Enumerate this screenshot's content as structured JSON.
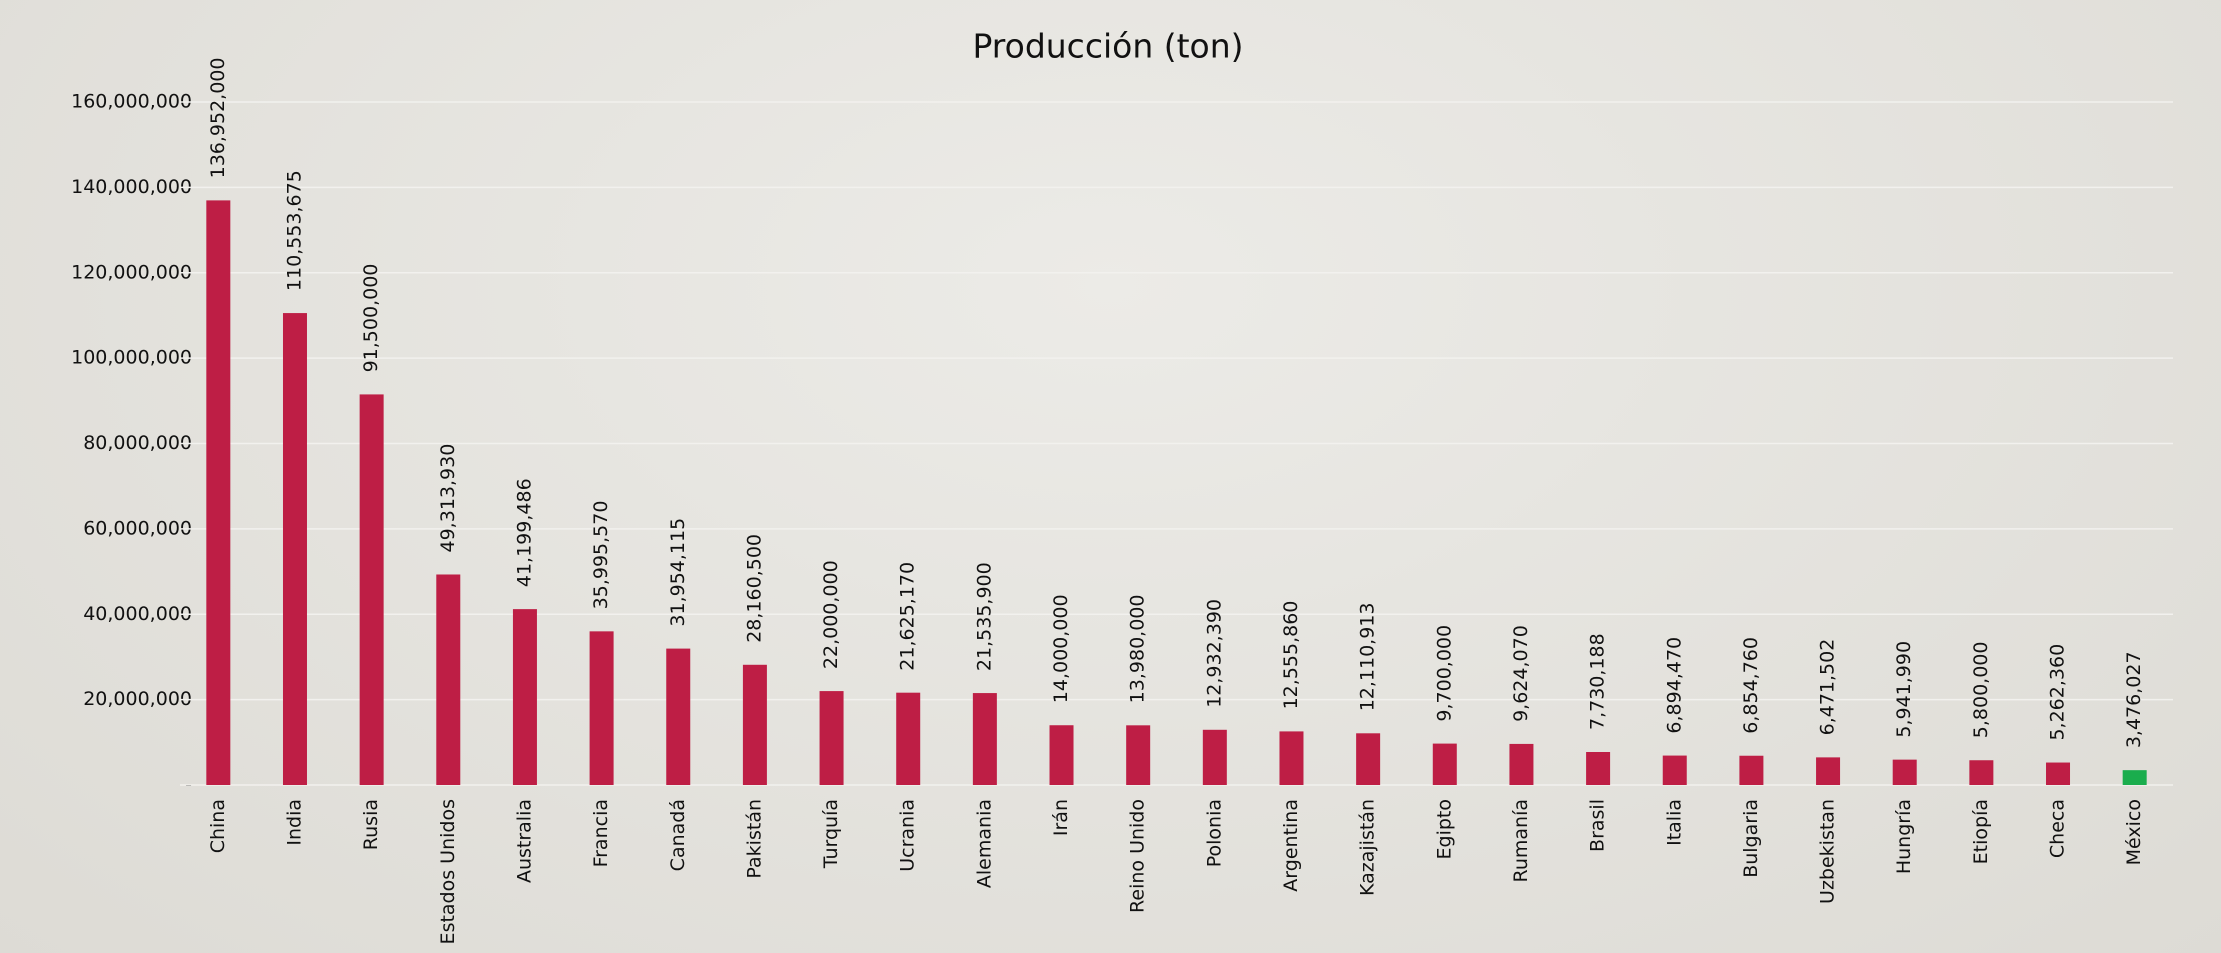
{
  "chart_data": {
    "type": "bar",
    "title": "Producción (ton)",
    "categories": [
      "China",
      "India",
      "Rusia",
      "Estados Unidos",
      "Australia",
      "Francia",
      "Canadá",
      "Pakistán",
      "Turquía",
      "Ucrania",
      "Alemania",
      "Irán",
      "Reino Unido",
      "Polonia",
      "Argentina",
      "Kazajistán",
      "Egipto",
      "Rumanía",
      "Brasil",
      "Italia",
      "Bulgaria",
      "Uzbekistan",
      "Hungría",
      "Etiopía",
      "Checa",
      "México"
    ],
    "values": [
      136952000,
      110553675,
      91500000,
      49313930,
      41199486,
      35995570,
      31954115,
      28160500,
      22000000,
      21625170,
      21535900,
      14000000,
      13980000,
      12932390,
      12555860,
      12110913,
      9700000,
      9624070,
      7730188,
      6894470,
      6854760,
      6471502,
      5941990,
      5800000,
      5262360,
      3476027
    ],
    "value_labels": [
      "136,952,000",
      "110,553,675",
      "91,500,000",
      "49,313,930",
      "41,199,486",
      "35,995,570",
      "31,954,115",
      "28,160,500",
      "22,000,000",
      "21,625,170",
      "21,535,900",
      "14,000,000",
      "13,980,000",
      "12,932,390",
      "12,555,860",
      "12,110,913",
      "9,700,000",
      "9,624,070",
      "7,730,188",
      "6,894,470",
      "6,854,760",
      "6,471,502",
      "5,941,990",
      "5,800,000",
      "5,262,360",
      "3,476,027"
    ],
    "colors": [
      "#be1e45",
      "#be1e45",
      "#be1e45",
      "#be1e45",
      "#be1e45",
      "#be1e45",
      "#be1e45",
      "#be1e45",
      "#be1e45",
      "#be1e45",
      "#be1e45",
      "#be1e45",
      "#be1e45",
      "#be1e45",
      "#be1e45",
      "#be1e45",
      "#be1e45",
      "#be1e45",
      "#be1e45",
      "#be1e45",
      "#be1e45",
      "#be1e45",
      "#be1e45",
      "#be1e45",
      "#be1e45",
      "#1aad4d"
    ],
    "ylim": [
      0,
      160000000
    ],
    "yticks": [
      {
        "value": 0,
        "label": "-"
      },
      {
        "value": 20000000,
        "label": "20,000,000"
      },
      {
        "value": 40000000,
        "label": "40,000,000"
      },
      {
        "value": 60000000,
        "label": "60,000,000"
      },
      {
        "value": 80000000,
        "label": "80,000,000"
      },
      {
        "value": 100000000,
        "label": "100,000,000"
      },
      {
        "value": 120000000,
        "label": "120,000,000"
      },
      {
        "value": 140000000,
        "label": "140,000,000"
      },
      {
        "value": 160000000,
        "label": "160,000,000"
      }
    ],
    "grid": true
  }
}
